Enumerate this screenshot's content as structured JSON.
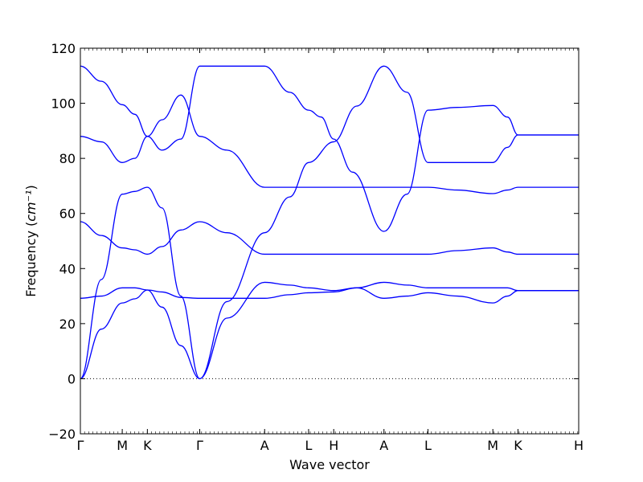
{
  "chart_data": {
    "type": "line",
    "title": "",
    "xlabel": "Wave vector",
    "ylabel": "Frequency",
    "ylabel_unit": "cm⁻¹",
    "ylim": [
      -20,
      120
    ],
    "yticks": [
      -20,
      0,
      20,
      40,
      60,
      80,
      100,
      120
    ],
    "xlim": [
      0,
      11.9
    ],
    "xticks": [
      {
        "label": "Γ",
        "x": 0
      },
      {
        "label": "M",
        "x": 1
      },
      {
        "label": "K",
        "x": 1.6
      },
      {
        "label": "Γ",
        "x": 2.85
      },
      {
        "label": "A",
        "x": 4.4
      },
      {
        "label": "L",
        "x": 5.45
      },
      {
        "label": "H",
        "x": 6.05
      },
      {
        "label": "A",
        "x": 7.25
      },
      {
        "label": "L",
        "x": 8.3
      },
      {
        "label": "M",
        "x": 9.85
      },
      {
        "label": "K",
        "x": 10.45
      },
      {
        "label": "H",
        "x": 11.9
      }
    ],
    "zero_line": true,
    "line_color": "#0000ff",
    "series": [
      {
        "values": [
          [
            0,
            113.5
          ],
          [
            0.5,
            108
          ],
          [
            1,
            99.5
          ],
          [
            1.3,
            96
          ],
          [
            1.6,
            88
          ],
          [
            1.95,
            83
          ],
          [
            2.4,
            87
          ],
          [
            2.85,
            113.5
          ],
          [
            4.4,
            113.5
          ],
          [
            5.0,
            104
          ],
          [
            5.45,
            97.5
          ],
          [
            5.75,
            95
          ],
          [
            6.05,
            87
          ],
          [
            6.5,
            75
          ],
          [
            7.25,
            53.5
          ],
          [
            7.8,
            67
          ],
          [
            8.3,
            97.5
          ],
          [
            9.0,
            98.5
          ],
          [
            9.85,
            99.2
          ],
          [
            10.2,
            95
          ],
          [
            10.45,
            88.5
          ],
          [
            11.9,
            88.5
          ]
        ]
      },
      {
        "values": [
          [
            0,
            88
          ],
          [
            0.5,
            86
          ],
          [
            1,
            78.5
          ],
          [
            1.3,
            80
          ],
          [
            1.6,
            88
          ],
          [
            1.95,
            94
          ],
          [
            2.4,
            103
          ],
          [
            2.85,
            88
          ],
          [
            3.5,
            83
          ],
          [
            4.4,
            69.5
          ],
          [
            5.0,
            69.5
          ],
          [
            5.45,
            69.5
          ],
          [
            6.05,
            69.5
          ],
          [
            7.25,
            69.5
          ],
          [
            8.3,
            69.5
          ],
          [
            9.0,
            68.5
          ],
          [
            9.85,
            67.2
          ],
          [
            10.2,
            68.5
          ],
          [
            10.45,
            69.5
          ],
          [
            11.9,
            69.5
          ]
        ]
      },
      {
        "values": [
          [
            0,
            57
          ],
          [
            0.5,
            52
          ],
          [
            1,
            47.5
          ],
          [
            1.3,
            46.8
          ],
          [
            1.6,
            45.2
          ],
          [
            1.95,
            48
          ],
          [
            2.4,
            54
          ],
          [
            2.85,
            57
          ],
          [
            3.5,
            53
          ],
          [
            4.4,
            45.2
          ],
          [
            5.45,
            45.2
          ],
          [
            7.25,
            45.2
          ],
          [
            8.3,
            45.2
          ],
          [
            9.0,
            46.5
          ],
          [
            9.85,
            47.5
          ],
          [
            10.2,
            46
          ],
          [
            10.45,
            45.2
          ],
          [
            11.9,
            45.2
          ]
        ]
      },
      {
        "values": [
          [
            0,
            29.2
          ],
          [
            0.5,
            30
          ],
          [
            1,
            33
          ],
          [
            1.3,
            33
          ],
          [
            1.6,
            32.2
          ],
          [
            1.95,
            31.5
          ],
          [
            2.4,
            29.5
          ],
          [
            2.85,
            29.2
          ],
          [
            3.5,
            29.2
          ],
          [
            4.4,
            29.2
          ],
          [
            5.0,
            30.5
          ],
          [
            5.45,
            31.2
          ],
          [
            6.05,
            31.5
          ],
          [
            6.6,
            33
          ],
          [
            7.25,
            35
          ],
          [
            7.8,
            34
          ],
          [
            8.3,
            33
          ],
          [
            9.85,
            33
          ],
          [
            10.2,
            33
          ],
          [
            10.45,
            32
          ],
          [
            11.9,
            32
          ]
        ]
      },
      {
        "values": [
          [
            0,
            0
          ],
          [
            0.5,
            18
          ],
          [
            1,
            27.5
          ],
          [
            1.3,
            29
          ],
          [
            1.6,
            32.2
          ],
          [
            1.95,
            26
          ],
          [
            2.4,
            12
          ],
          [
            2.85,
            0
          ],
          [
            3.5,
            22
          ],
          [
            4.4,
            35
          ],
          [
            5.0,
            34
          ],
          [
            5.45,
            33
          ],
          [
            6.05,
            32
          ],
          [
            6.6,
            33
          ],
          [
            7.25,
            29.2
          ],
          [
            7.8,
            30
          ],
          [
            8.3,
            31.2
          ],
          [
            9.0,
            30
          ],
          [
            9.85,
            27.5
          ],
          [
            10.2,
            30
          ],
          [
            10.45,
            32
          ],
          [
            11.9,
            32
          ]
        ]
      },
      {
        "values": [
          [
            0,
            0
          ],
          [
            0.5,
            36
          ],
          [
            1,
            67
          ],
          [
            1.3,
            68
          ],
          [
            1.6,
            69.5
          ],
          [
            1.95,
            62
          ],
          [
            2.4,
            30
          ],
          [
            2.85,
            0
          ],
          [
            3.5,
            28
          ],
          [
            4.4,
            53
          ],
          [
            5.0,
            66
          ],
          [
            5.45,
            78.5
          ],
          [
            6.05,
            86
          ],
          [
            6.6,
            99
          ],
          [
            7.25,
            113.5
          ],
          [
            7.8,
            104
          ],
          [
            8.3,
            78.5
          ],
          [
            9.0,
            78.5
          ],
          [
            9.85,
            78.5
          ],
          [
            10.2,
            84
          ],
          [
            10.45,
            88.5
          ],
          [
            11.9,
            88.5
          ]
        ]
      }
    ]
  }
}
